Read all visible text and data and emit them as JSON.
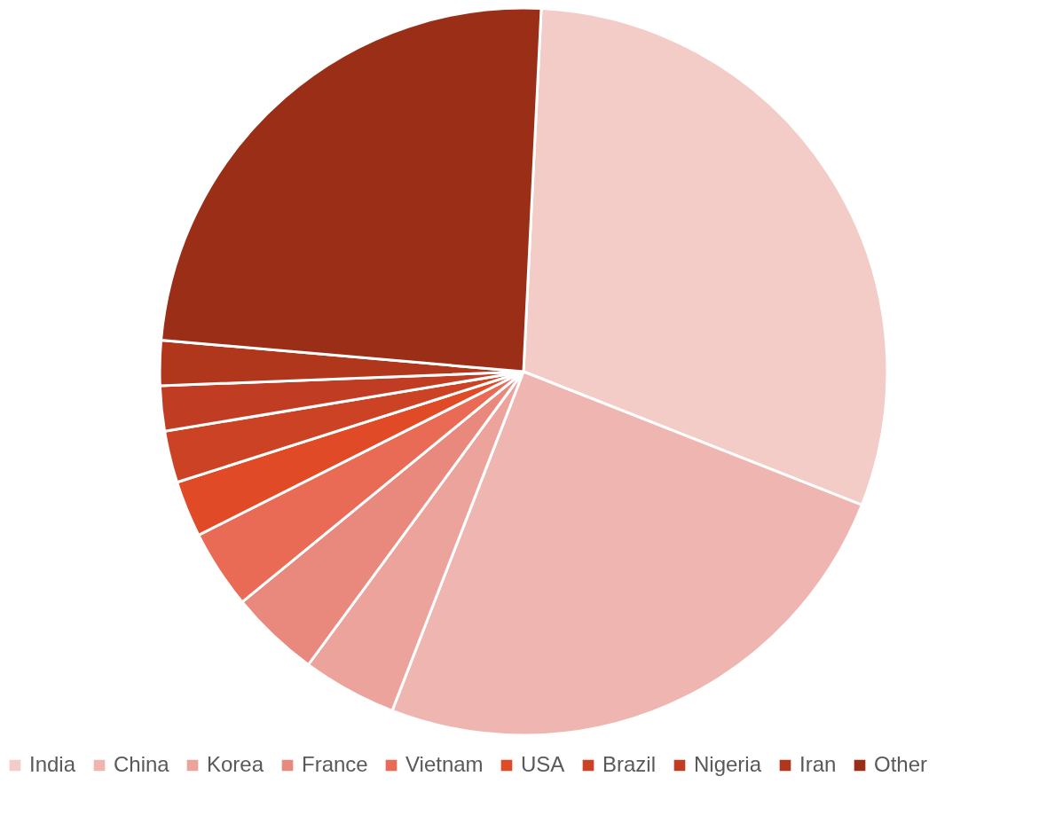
{
  "chart_data": {
    "type": "pie",
    "categories": [
      "India",
      "China",
      "Korea",
      "France",
      "Vietnam",
      "USA",
      "Brazil",
      "Nigeria",
      "Iran",
      "Other"
    ],
    "values": [
      30.2,
      24.9,
      4.2,
      4.0,
      3.5,
      2.5,
      2.3,
      2.0,
      2.0,
      24.4
    ],
    "colors": [
      "#f3cbc7",
      "#efb5b1",
      "#eca39c",
      "#e9887d",
      "#e96a55",
      "#e04a26",
      "#cc4224",
      "#c03c22",
      "#b0361c",
      "#9b2e16"
    ],
    "legend": "bottom"
  }
}
